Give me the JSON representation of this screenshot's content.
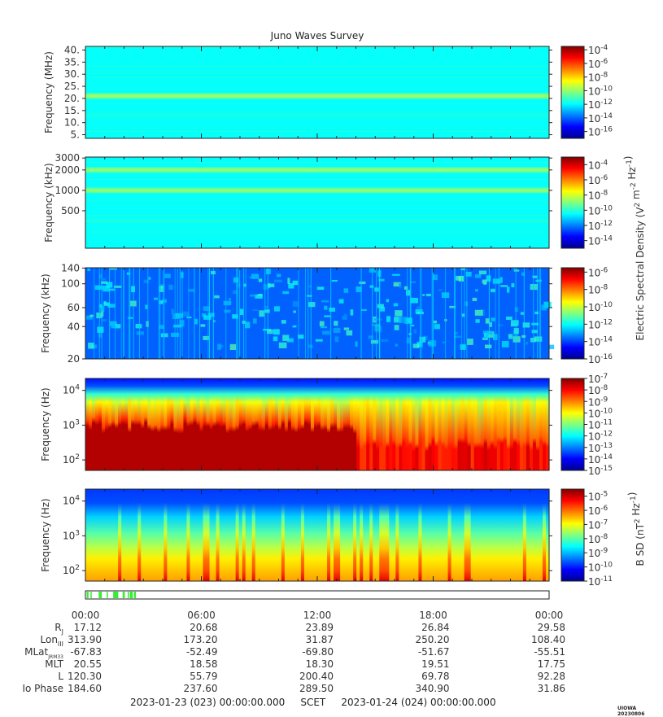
{
  "page": {
    "title": "Juno Waves Survey",
    "stamp": "UIOWA 20230806",
    "footer": {
      "start": "2023-01-23 (023) 00:00:00.000",
      "mid": "SCET",
      "end": "2023-01-24 (024) 00:00:00.000"
    }
  },
  "colors": {
    "jet": [
      "#00008f",
      "#0000ff",
      "#0080ff",
      "#00ffff",
      "#80ff80",
      "#ffff00",
      "#ff8000",
      "#ff0000",
      "#800000"
    ]
  },
  "chart_data": [
    {
      "type": "heatmap",
      "ylabel": "Frequency (MHz)",
      "yscale": "linear",
      "ylim": [
        3.5,
        41.5
      ],
      "yticks": [
        {
          "v": 5,
          "label": "5."
        },
        {
          "v": 10,
          "label": "10."
        },
        {
          "v": 15,
          "label": "15."
        },
        {
          "v": 20,
          "label": "20."
        },
        {
          "v": 25,
          "label": "25."
        },
        {
          "v": 30,
          "label": "30."
        },
        {
          "v": 35,
          "label": "35."
        },
        {
          "v": 40,
          "label": "40."
        }
      ],
      "bands": [
        {
          "y": 21,
          "level": 0.47
        }
      ],
      "background_level": 0.38,
      "colorbar": {
        "ticks": [
          "10^-4",
          "10^-6",
          "10^-8",
          "10^-10",
          "10^-12",
          "10^-14",
          "10^-16"
        ],
        "range_exp": [
          -3.5,
          -17
        ]
      }
    },
    {
      "type": "heatmap",
      "ylabel": "Frequency (kHz)",
      "yscale": "log",
      "ylim": [
        140,
        3100
      ],
      "yticks": [
        {
          "v": 500,
          "label": "500"
        },
        {
          "v": 1000,
          "label": "1000"
        },
        {
          "v": 2000,
          "label": "2000"
        },
        {
          "v": 3000,
          "label": "3000"
        }
      ],
      "bands": [
        {
          "y": 1000,
          "level": 0.46
        },
        {
          "y": 2000,
          "level": 0.46
        }
      ],
      "background_level": 0.38,
      "colorbar": {
        "ticks": [
          "10^-4",
          "10^-6",
          "10^-8",
          "10^-10",
          "10^-12",
          "10^-14"
        ],
        "range_exp": [
          -3,
          -15
        ]
      }
    },
    {
      "type": "heatmap",
      "ylabel": "Frequency (kHz)",
      "yscale": "log",
      "ylim": [
        20,
        141
      ],
      "yticks": [
        {
          "v": 20,
          "label": "20"
        },
        {
          "v": 40,
          "label": "40"
        },
        {
          "v": 60,
          "label": "60"
        },
        {
          "v": 100,
          "label": "100"
        },
        {
          "v": 140,
          "label": "140"
        }
      ],
      "background_level": 0.22,
      "colorbar": {
        "ticks": [
          "10^-6",
          "10^-8",
          "10^-10",
          "10^-12",
          "10^-14",
          "10^-16"
        ],
        "range_exp": [
          -5.5,
          -16
        ]
      }
    },
    {
      "type": "heatmap",
      "ylabel": "Frequency (Hz)",
      "yscale": "log",
      "ylim": [
        50,
        22000
      ],
      "yticks": [
        {
          "v": 100,
          "label": "10^2"
        },
        {
          "v": 1000,
          "label": "10^3"
        },
        {
          "v": 10000,
          "label": "10^4"
        }
      ],
      "colorbar": {
        "ticks": [
          "10^-7",
          "10^-8",
          "10^-9",
          "10^-10",
          "10^-11",
          "10^-12",
          "10^-13",
          "10^-14",
          "10^-15"
        ],
        "range_exp": [
          -7,
          -15
        ]
      }
    },
    {
      "type": "heatmap",
      "ylabel": "Frequency (Hz)",
      "yscale": "log",
      "ylim": [
        50,
        22000
      ],
      "yticks": [
        {
          "v": 100,
          "label": "10^2"
        },
        {
          "v": 1000,
          "label": "10^3"
        },
        {
          "v": 10000,
          "label": "10^4"
        }
      ],
      "colorbar": {
        "ticks": [
          "10^-5",
          "10^-6",
          "10^-7",
          "10^-8",
          "10^-9",
          "10^-10",
          "10^-11"
        ],
        "range_exp": [
          -4.5,
          -11
        ]
      }
    }
  ],
  "colorbar_labels": {
    "electric": "Electric Spectral Density (V^2 m^-2 Hz^-1)",
    "magnetic": "B SD (nT^2 Hz^-1)"
  },
  "timebar": {
    "flags": [
      [
        0.5,
        1.3
      ],
      [
        2.1,
        2.4
      ],
      [
        5.5,
        6.8
      ],
      [
        8.8,
        9.2
      ],
      [
        11.5,
        13.6
      ],
      [
        15.4,
        16.3
      ],
      [
        17.5,
        17.9
      ],
      [
        18.4,
        19.6
      ],
      [
        20.1,
        20.9
      ]
    ],
    "flag_hours_scale": 0.125
  },
  "xaxis": {
    "hours": [
      0,
      6,
      12,
      18,
      24
    ],
    "labels": [
      "00:00",
      "06:00",
      "12:00",
      "18:00",
      "00:00"
    ]
  },
  "ephemeris": {
    "rows": [
      {
        "name": "R",
        "sub": "J",
        "values": [
          "17.12",
          "20.68",
          "23.89",
          "26.84",
          "29.58"
        ]
      },
      {
        "name": "Lon",
        "sub": "III",
        "values": [
          "313.90",
          "173.20",
          "31.87",
          "250.20",
          "108.40"
        ]
      },
      {
        "name": "MLat",
        "sub": "JRM33",
        "values": [
          "-67.83",
          "-52.49",
          "-69.80",
          "-51.67",
          "-55.51"
        ]
      },
      {
        "name": "MLT",
        "sub": "",
        "values": [
          "20.55",
          "18.58",
          "18.30",
          "19.51",
          "17.75"
        ]
      },
      {
        "name": "L",
        "sub": "",
        "values": [
          "120.30",
          "55.79",
          "200.40",
          "69.78",
          "92.28"
        ]
      },
      {
        "name": "Io Phase",
        "sub": "",
        "values": [
          "184.60",
          "237.60",
          "289.50",
          "340.90",
          "31.86"
        ]
      }
    ]
  }
}
